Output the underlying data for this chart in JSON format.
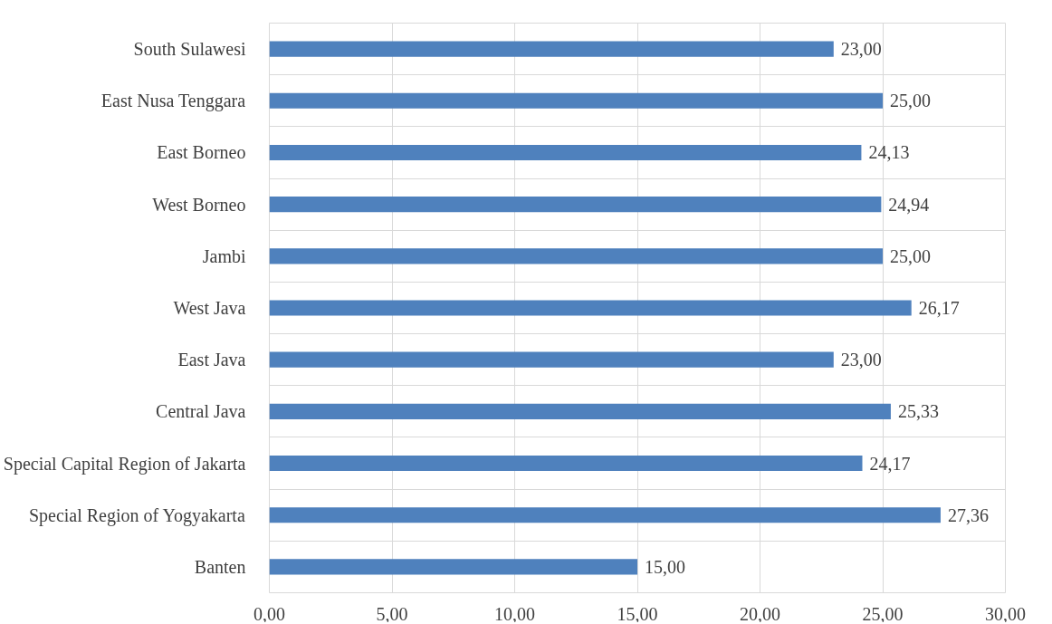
{
  "chart_data": {
    "type": "bar",
    "orientation": "horizontal",
    "categories": [
      "South Sulawesi",
      "East Nusa Tenggara",
      "East Borneo",
      "West Borneo",
      "Jambi",
      "West Java",
      "East Java",
      "Central Java",
      "Special Capital Region of Jakarta",
      "Special Region of Yogyakarta",
      "Banten"
    ],
    "values": [
      23.0,
      25.0,
      24.13,
      24.94,
      25.0,
      26.17,
      23.0,
      25.33,
      24.17,
      27.36,
      15.0
    ],
    "value_labels": [
      "23,00",
      "25,00",
      "24,13",
      "24,94",
      "25,00",
      "26,17",
      "23,00",
      "25,33",
      "24,17",
      "27,36",
      "15,00"
    ],
    "color": "#4f81bd",
    "xlim": [
      0,
      30
    ],
    "xticks": [
      {
        "value": 0,
        "label": "0,00"
      },
      {
        "value": 5,
        "label": "5,00"
      },
      {
        "value": 10,
        "label": "10,00"
      },
      {
        "value": 15,
        "label": "15,00"
      },
      {
        "value": 20,
        "label": "20,00"
      },
      {
        "value": 25,
        "label": "25,00"
      },
      {
        "value": 30,
        "label": "30,00"
      }
    ],
    "grid": true
  }
}
